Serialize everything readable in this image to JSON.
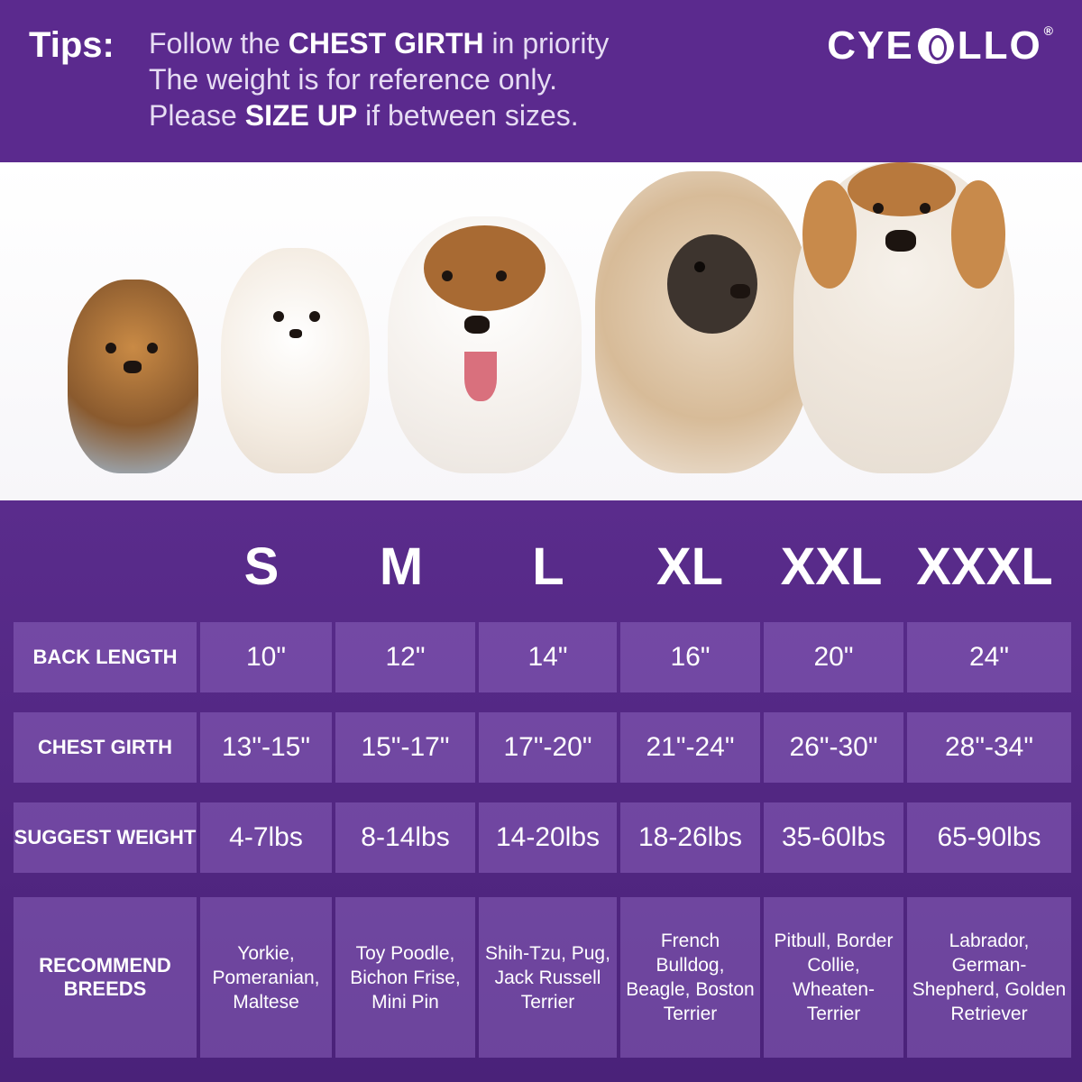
{
  "header": {
    "tips_label": "Tips:",
    "line1_pre": "Follow the ",
    "line1_bold": "CHEST GIRTH",
    "line1_post": " in priority",
    "line2": "The weight is for reference only.",
    "line3_pre": "Please ",
    "line3_bold": "SIZE UP",
    "line3_post": " if between sizes.",
    "logo_pre": "CYE",
    "logo_post": "LLO",
    "logo_reg": "®"
  },
  "sizes": [
    "S",
    "M",
    "L",
    "XL",
    "XXL",
    "XXXL"
  ],
  "rows": [
    {
      "label": "BACK  LENGTH",
      "values": [
        "10\"",
        "12\"",
        "14\"",
        "16\"",
        "20\"",
        "24\""
      ]
    },
    {
      "label": "CHEST GIRTH",
      "values": [
        "13\"-15\"",
        "15\"-17\"",
        "17\"-20\"",
        "21\"-24\"",
        "26\"-30\"",
        "28\"-34\""
      ]
    },
    {
      "label": "SUGGEST WEIGHT",
      "values": [
        "4-7lbs",
        "8-14lbs",
        "14-20lbs",
        "18-26lbs",
        "35-60lbs",
        "65-90lbs"
      ]
    },
    {
      "label": "RECOMMEND BREEDS",
      "values": [
        "Yorkie, Pomeranian, Maltese",
        "Toy Poodle, Bichon Frise, Mini Pin",
        "Shih-Tzu, Pug, Jack Russell Terrier",
        "French Bulldog, Beagle, Boston Terrier",
        "Pitbull, Border Collie, Wheaten-Terrier",
        "Labrador, German-Shepherd, Golden Retriever"
      ]
    }
  ],
  "colors": {
    "header_bg": "#5b2a8e",
    "table_bg": "#4a2279",
    "cell_bg": "#8a62b8"
  },
  "dogs": [
    "yorkie-photo",
    "pomeranian-photo",
    "jack-russell-photo",
    "french-bulldog-photo",
    "beagle-photo"
  ]
}
